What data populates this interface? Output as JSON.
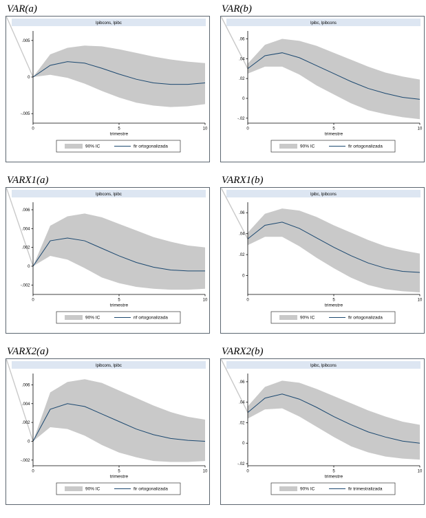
{
  "style": {
    "band_color": "#c9c9c9",
    "line_color": "#1a476f",
    "header_fill": "#dde6f2",
    "frame_color": "#4a5560",
    "axis_color": "#000000",
    "legend_border": "#333333",
    "plot_bg": "#ffffff"
  },
  "chart_data": [
    {
      "type": "line",
      "title": "VAR(a)",
      "header": "lpibcons, lpibc",
      "xlabel": "trimestre",
      "xlim": [
        0,
        10
      ],
      "xticks": [
        0,
        5,
        10
      ],
      "ylim": [
        -0.0063,
        0.0063
      ],
      "yticks": [
        {
          "v": 0.005,
          "label": ".005"
        },
        {
          "v": 0,
          "label": "0"
        },
        {
          "v": -0.005,
          "label": "-.005"
        }
      ],
      "legend": {
        "band_label": "90% IC",
        "line_label": "fir ortogonalizada"
      },
      "x": [
        0,
        1,
        2,
        3,
        4,
        5,
        6,
        7,
        8,
        9,
        10
      ],
      "line": [
        0,
        0.0016,
        0.0021,
        0.0019,
        0.0012,
        0.0004,
        -0.0003,
        -0.0008,
        -0.001,
        -0.001,
        -0.0008
      ],
      "band": {
        "upper": [
          0,
          0.0031,
          0.004,
          0.0043,
          0.0042,
          0.0038,
          0.0033,
          0.0028,
          0.0024,
          0.0021,
          0.0019
        ],
        "lower": [
          0,
          0.0003,
          -0.0001,
          -0.0009,
          -0.0019,
          -0.0028,
          -0.0035,
          -0.0039,
          -0.0041,
          -0.004,
          -0.0037
        ]
      }
    },
    {
      "type": "line",
      "title": "VAR(b)",
      "header": "lpibc, lpibcons",
      "xlabel": "trimestre",
      "xlim": [
        0,
        10
      ],
      "xticks": [
        0,
        5,
        10
      ],
      "ylim": [
        -0.025,
        0.068
      ],
      "yticks": [
        {
          "v": 0.06,
          "label": ".06"
        },
        {
          "v": 0.04,
          "label": ".04"
        },
        {
          "v": 0.02,
          "label": ".02"
        },
        {
          "v": 0,
          "label": "0"
        },
        {
          "v": -0.02,
          "label": "-.02"
        }
      ],
      "legend": {
        "band_label": "90% IC",
        "line_label": "fir ortogonalizada"
      },
      "x": [
        0,
        1,
        2,
        3,
        4,
        5,
        6,
        7,
        8,
        9,
        10
      ],
      "line": [
        0.03,
        0.043,
        0.046,
        0.041,
        0.033,
        0.025,
        0.017,
        0.01,
        0.005,
        0.001,
        -0.001
      ],
      "band": {
        "upper": [
          0.035,
          0.054,
          0.06,
          0.058,
          0.053,
          0.046,
          0.039,
          0.032,
          0.026,
          0.022,
          0.019
        ],
        "lower": [
          0.025,
          0.032,
          0.032,
          0.024,
          0.013,
          0.004,
          -0.005,
          -0.012,
          -0.016,
          -0.019,
          -0.021
        ]
      }
    },
    {
      "type": "line",
      "title": "VARX1(a)",
      "header": "lpibcons, lpibc",
      "xlabel": "trimestre",
      "xlim": [
        0,
        10
      ],
      "xticks": [
        0,
        5,
        10
      ],
      "ylim": [
        -0.003,
        0.0068
      ],
      "yticks": [
        {
          "v": 0.006,
          "label": ".006"
        },
        {
          "v": 0.004,
          "label": ".004"
        },
        {
          "v": 0.002,
          "label": ".002"
        },
        {
          "v": 0,
          "label": "0"
        },
        {
          "v": -0.002,
          "label": "-.002"
        }
      ],
      "legend": {
        "band_label": "90% IC",
        "line_label": "rif ortogonalizada"
      },
      "x": [
        0,
        1,
        2,
        3,
        4,
        5,
        6,
        7,
        8,
        9,
        10
      ],
      "line": [
        0,
        0.0027,
        0.003,
        0.0027,
        0.0019,
        0.0011,
        0.0004,
        -0.0001,
        -0.0004,
        -0.0005,
        -0.0005
      ],
      "band": {
        "upper": [
          0,
          0.0043,
          0.0053,
          0.0056,
          0.0052,
          0.0045,
          0.0038,
          0.0031,
          0.0026,
          0.0022,
          0.002
        ],
        "lower": [
          0,
          0.0011,
          0.0007,
          -0.0002,
          -0.0012,
          -0.0018,
          -0.0022,
          -0.0024,
          -0.0025,
          -0.0025,
          -0.0024
        ]
      }
    },
    {
      "type": "line",
      "title": "VARX1(b)",
      "header": "lpibc, lpibcons",
      "xlabel": "trimestre",
      "xlim": [
        0,
        10
      ],
      "xticks": [
        0,
        5,
        10
      ],
      "ylim": [
        -0.018,
        0.07
      ],
      "yticks": [
        {
          "v": 0.06,
          "label": ".06"
        },
        {
          "v": 0.04,
          "label": ".04"
        },
        {
          "v": 0.02,
          "label": ".02"
        },
        {
          "v": 0,
          "label": "0"
        }
      ],
      "legend": {
        "band_label": "90% IC",
        "line_label": "fir ortogonalizada"
      },
      "x": [
        0,
        1,
        2,
        3,
        4,
        5,
        6,
        7,
        8,
        9,
        10
      ],
      "line": [
        0.035,
        0.048,
        0.051,
        0.045,
        0.036,
        0.027,
        0.019,
        0.012,
        0.007,
        0.004,
        0.003
      ],
      "band": {
        "upper": [
          0.041,
          0.059,
          0.064,
          0.062,
          0.056,
          0.048,
          0.041,
          0.034,
          0.028,
          0.024,
          0.021
        ],
        "lower": [
          0.029,
          0.037,
          0.037,
          0.028,
          0.017,
          0.007,
          -0.002,
          -0.009,
          -0.013,
          -0.015,
          -0.016
        ]
      }
    },
    {
      "type": "line",
      "title": "VARX2(a)",
      "header": "lpibcons, lpibc",
      "xlabel": "trimestre",
      "xlim": [
        0,
        10
      ],
      "xticks": [
        0,
        5,
        10
      ],
      "ylim": [
        -0.0026,
        0.0072
      ],
      "yticks": [
        {
          "v": 0.006,
          "label": ".006"
        },
        {
          "v": 0.004,
          "label": ".004"
        },
        {
          "v": 0.002,
          "label": ".002"
        },
        {
          "v": 0,
          "label": "0"
        },
        {
          "v": -0.002,
          "label": "-.002"
        }
      ],
      "legend": {
        "band_label": "90% IC",
        "line_label": "fir ortogonalizada"
      },
      "x": [
        0,
        1,
        2,
        3,
        4,
        5,
        6,
        7,
        8,
        9,
        10
      ],
      "line": [
        0,
        0.0034,
        0.004,
        0.0037,
        0.0029,
        0.0021,
        0.0013,
        0.0007,
        0.0003,
        0.0001,
        0
      ],
      "band": {
        "upper": [
          0,
          0.0052,
          0.0063,
          0.0066,
          0.0062,
          0.0054,
          0.0046,
          0.0038,
          0.0031,
          0.0026,
          0.0023
        ],
        "lower": [
          0,
          0.0015,
          0.0013,
          0.0006,
          -0.0004,
          -0.0012,
          -0.0017,
          -0.0021,
          -0.0022,
          -0.0022,
          -0.0021
        ]
      }
    },
    {
      "type": "line",
      "title": "VARX2(b)",
      "header": "lpibc, lpibcons",
      "xlabel": "trimestre",
      "xlim": [
        0,
        10
      ],
      "xticks": [
        0,
        5,
        10
      ],
      "ylim": [
        -0.022,
        0.068
      ],
      "yticks": [
        {
          "v": 0.06,
          "label": ".06"
        },
        {
          "v": 0.04,
          "label": ".04"
        },
        {
          "v": 0.02,
          "label": ".02"
        },
        {
          "v": 0,
          "label": "0"
        },
        {
          "v": -0.02,
          "label": "-.02"
        }
      ],
      "legend": {
        "band_label": "90% IC",
        "line_label": "fir trimestralizada"
      },
      "x": [
        0,
        1,
        2,
        3,
        4,
        5,
        6,
        7,
        8,
        9,
        10
      ],
      "line": [
        0.03,
        0.044,
        0.048,
        0.043,
        0.035,
        0.026,
        0.018,
        0.011,
        0.006,
        0.002,
        0
      ],
      "band": {
        "upper": [
          0.036,
          0.055,
          0.061,
          0.059,
          0.053,
          0.046,
          0.039,
          0.032,
          0.026,
          0.021,
          0.018
        ],
        "lower": [
          0.024,
          0.033,
          0.034,
          0.026,
          0.016,
          0.006,
          -0.003,
          -0.009,
          -0.013,
          -0.015,
          -0.016
        ]
      }
    }
  ]
}
